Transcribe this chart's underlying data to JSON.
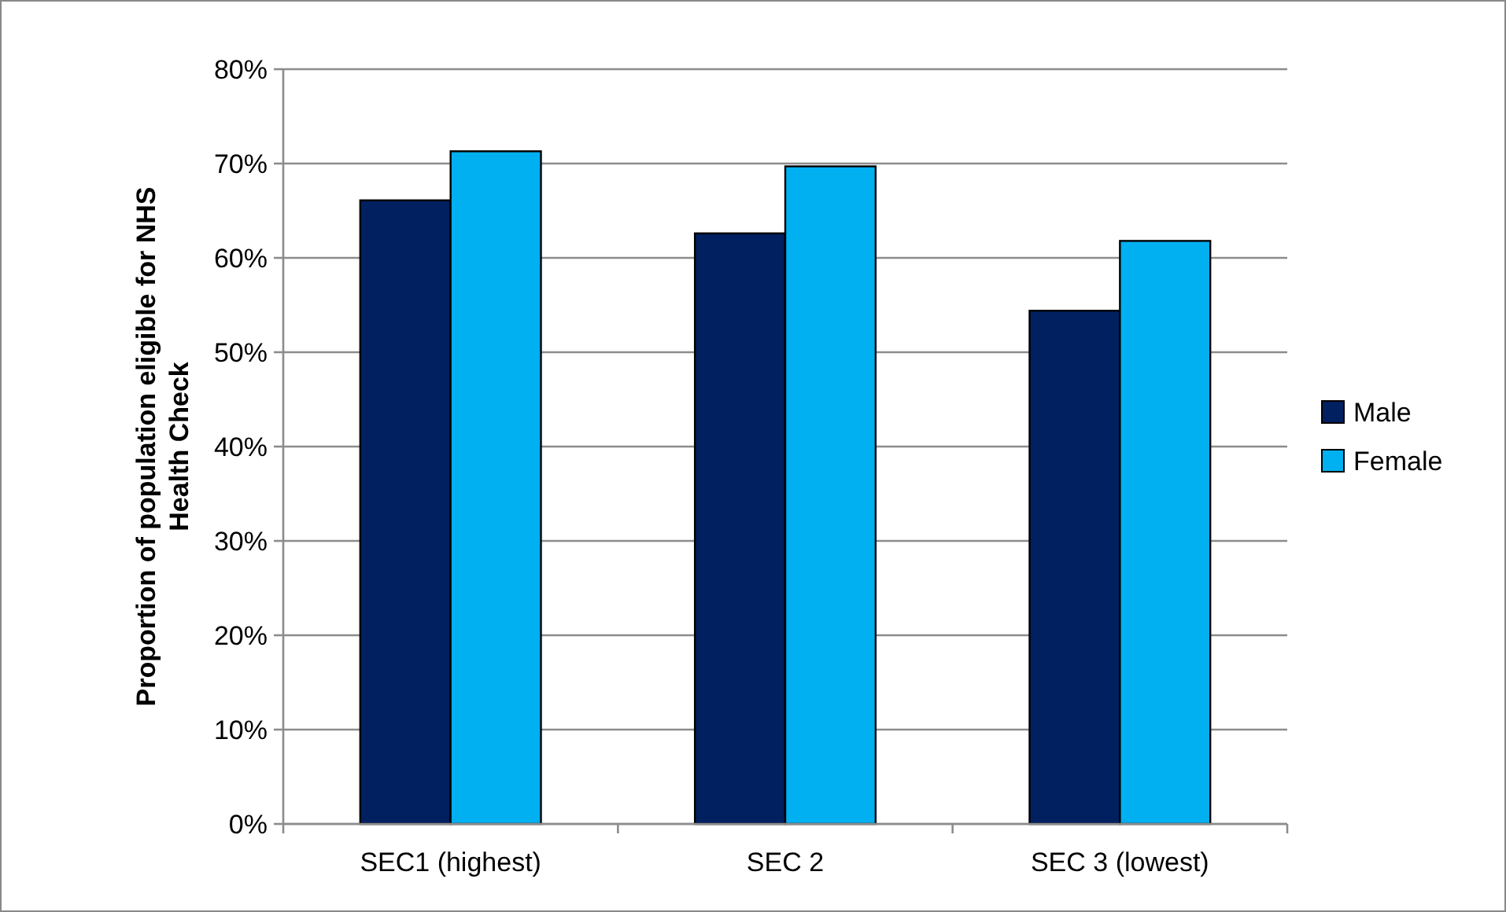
{
  "chart_data": {
    "type": "bar",
    "ylabel": "Proportion of population eligible for NHS Health Check",
    "categories": [
      "SEC1 (highest)",
      "SEC 2",
      "SEC 3 (lowest)"
    ],
    "series": [
      {
        "name": "Male",
        "color": "#002060",
        "values": [
          66.1,
          62.6,
          54.4
        ]
      },
      {
        "name": "Female",
        "color": "#00b0f0",
        "values": [
          71.3,
          69.7,
          61.8
        ]
      }
    ],
    "ylim": [
      0,
      80
    ],
    "yticks": [
      {
        "value": 0,
        "label": "0%"
      },
      {
        "value": 10,
        "label": "10%"
      },
      {
        "value": 20,
        "label": "20%"
      },
      {
        "value": 30,
        "label": "30%"
      },
      {
        "value": 40,
        "label": "40%"
      },
      {
        "value": 50,
        "label": "50%"
      },
      {
        "value": 60,
        "label": "60%"
      },
      {
        "value": 70,
        "label": "70%"
      },
      {
        "value": 80,
        "label": "80%"
      }
    ],
    "grid": "y",
    "legend": "right"
  }
}
